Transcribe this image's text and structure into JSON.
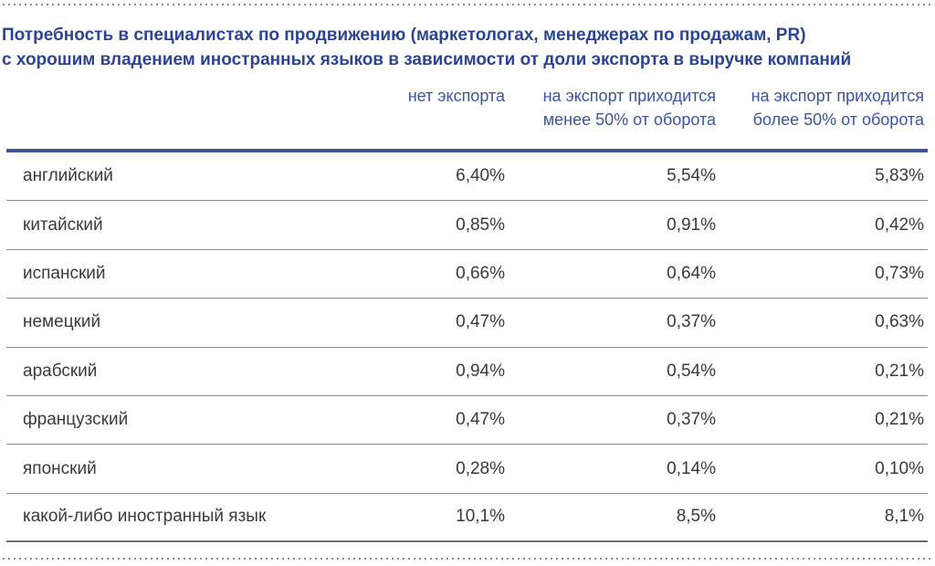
{
  "title": "Потребность в специалистах по продвижению (маркетологах, менеджерах по продажам, PR)\nс хорошим владением иностранных языков в зависимости от доли экспорта в выручке компаний",
  "table": {
    "column_headers": [
      "нет экспорта",
      "на экспорт приходится\nменее 50% от оборота",
      "на экспорт приходится\nболее 50% от оборота"
    ],
    "rows": [
      {
        "label": "английский",
        "values": [
          "6,40%",
          "5,54%",
          "5,83%"
        ]
      },
      {
        "label": "китайский",
        "values": [
          "0,85%",
          "0,91%",
          "0,42%"
        ]
      },
      {
        "label": "испанский",
        "values": [
          "0,66%",
          "0,64%",
          "0,73%"
        ]
      },
      {
        "label": "немецкий",
        "values": [
          "0,47%",
          "0,37%",
          "0,63%"
        ]
      },
      {
        "label": "арабский",
        "values": [
          "0,94%",
          "0,54%",
          "0,21%"
        ]
      },
      {
        "label": "французский",
        "values": [
          "0,47%",
          "0,37%",
          "0,21%"
        ]
      },
      {
        "label": "японский",
        "values": [
          "0,28%",
          "0,14%",
          "0,10%"
        ]
      },
      {
        "label": "какой-либо иностранный язык",
        "values": [
          "10,1%",
          "8,5%",
          "8,1%"
        ]
      }
    ]
  },
  "colors": {
    "title_blue": "#2b4594",
    "header_blue": "#3a54a3",
    "divider_blue": "#3e52a0",
    "row_text": "#3a3a3a",
    "separator_gray": "#8c8c8c",
    "dotted_gray": "#8f8f8f"
  },
  "chart_data": {
    "type": "table",
    "title": "Потребность в специалистах по продвижению (маркетологах, менеджерах по продажам, PR) с хорошим владением иностранных языков в зависимости от доли экспорта в выручке компаний",
    "columns": [
      "нет экспорта",
      "на экспорт приходится менее 50% от оборота",
      "на экспорт приходится более 50% от оборота"
    ],
    "row_categories": [
      "английский",
      "китайский",
      "испанский",
      "немецкий",
      "арабский",
      "французский",
      "японский",
      "какой-либо иностранный язык"
    ],
    "values_percent": [
      [
        6.4,
        5.54,
        5.83
      ],
      [
        0.85,
        0.91,
        0.42
      ],
      [
        0.66,
        0.64,
        0.73
      ],
      [
        0.47,
        0.37,
        0.63
      ],
      [
        0.94,
        0.54,
        0.21
      ],
      [
        0.47,
        0.37,
        0.21
      ],
      [
        0.28,
        0.14,
        0.1
      ],
      [
        10.1,
        8.5,
        8.1
      ]
    ]
  }
}
